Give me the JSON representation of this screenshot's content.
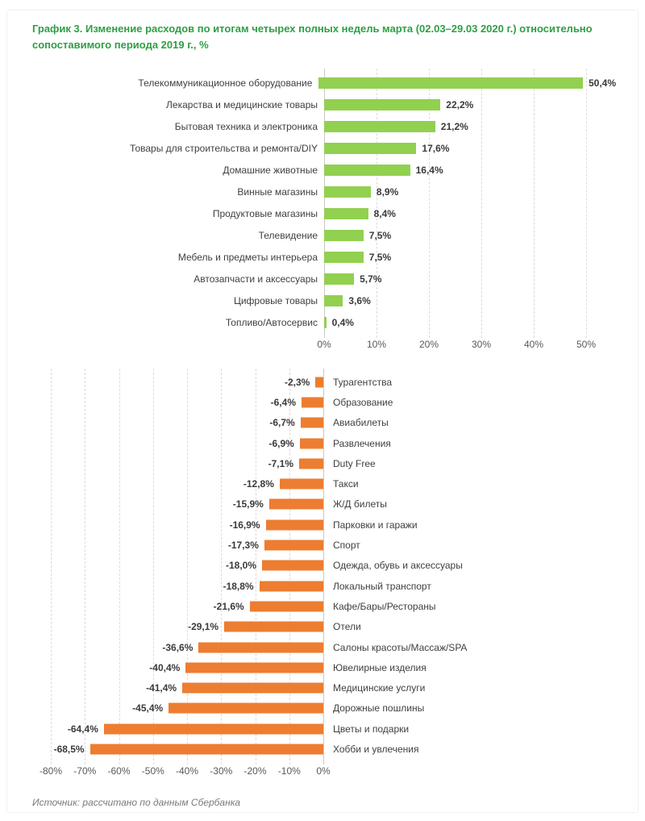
{
  "page": {
    "title": "График 3. Изменение расходов по итогам четырех полных недель марта (02.03–29.03 2020 г.) относительно сопоставимого периода 2019 г., %",
    "source": "Источник: рассчитано по данным Сбербанка"
  },
  "colors": {
    "title_green": "#2f9e44",
    "positive_bar": "#92d050",
    "negative_bar": "#ed7d31",
    "gridline": "#dbdbdb",
    "zero_axis_line": "#c9c9c9",
    "category_text": "#3f3f3f",
    "tick_text": "#595959",
    "source_text": "#7a7a7a"
  },
  "chart_data": [
    {
      "type": "bar",
      "orientation": "horizontal",
      "direction": "positive",
      "bar_color": "#92d050",
      "grid": "dashed-vertical",
      "legend": "none",
      "categories": [
        "Телекоммуникационное оборудование",
        "Лекарства и медицинские товары",
        "Бытовая техника и электроника",
        "Товары для строительства и ремонта/DIY",
        "Домашние животные",
        "Винные магазины",
        "Продуктовые магазины",
        "Телевидение",
        "Мебель и предметы интерьера",
        "Автозапчасти и аксессуары",
        "Цифровые товары",
        "Топливо/Автосервис"
      ],
      "values": [
        50.4,
        22.2,
        21.2,
        17.6,
        16.4,
        8.9,
        8.4,
        7.5,
        7.5,
        5.7,
        3.6,
        0.4
      ],
      "value_labels": [
        "50,4%",
        "22,2%",
        "21,2%",
        "17,6%",
        "16,4%",
        "8,9%",
        "8,4%",
        "7,5%",
        "7,5%",
        "5,7%",
        "3,6%",
        "0,4%"
      ],
      "xlim": [
        0,
        55
      ],
      "x_tick_values": [
        0,
        10,
        20,
        30,
        40,
        50
      ],
      "x_tick_labels": [
        "0%",
        "10%",
        "20%",
        "30%",
        "40%",
        "50%"
      ]
    },
    {
      "type": "bar",
      "orientation": "horizontal",
      "direction": "negative",
      "bar_color": "#ed7d31",
      "grid": "dashed-vertical",
      "legend": "none",
      "categories": [
        "Турагентства",
        "Образование",
        "Авиабилеты",
        "Развлечения",
        "Duty Free",
        "Такси",
        "Ж/Д билеты",
        "Парковки и гаражи",
        "Спорт",
        "Одежда, обувь и аксессуары",
        "Локальный транспорт",
        "Кафе/Бары/Рестораны",
        "Отели",
        "Салоны красоты/Массаж/SPA",
        "Ювелирные изделия",
        "Медицинские услуги",
        "Дорожные пошлины",
        "Цветы и подарки",
        "Хобби и увлечения"
      ],
      "values": [
        -2.3,
        -6.4,
        -6.7,
        -6.9,
        -7.1,
        -12.8,
        -15.9,
        -16.9,
        -17.3,
        -18.0,
        -18.8,
        -21.6,
        -29.1,
        -36.6,
        -40.4,
        -41.4,
        -45.4,
        -64.4,
        -68.5
      ],
      "value_labels": [
        "-2,3%",
        "-6,4%",
        "-6,7%",
        "-6,9%",
        "-7,1%",
        "-12,8%",
        "-15,9%",
        "-16,9%",
        "-17,3%",
        "-18,0%",
        "-18,8%",
        "-21,6%",
        "-29,1%",
        "-36,6%",
        "-40,4%",
        "-41,4%",
        "-45,4%",
        "-64,4%",
        "-68,5%"
      ],
      "xlim": [
        -80,
        0
      ],
      "x_tick_values": [
        -80,
        -70,
        -60,
        -50,
        -40,
        -30,
        -20,
        -10,
        0
      ],
      "x_tick_labels": [
        "-80%",
        "-70%",
        "-60%",
        "-50%",
        "-40%",
        "-30%",
        "-20%",
        "-10%",
        "0%"
      ]
    }
  ]
}
